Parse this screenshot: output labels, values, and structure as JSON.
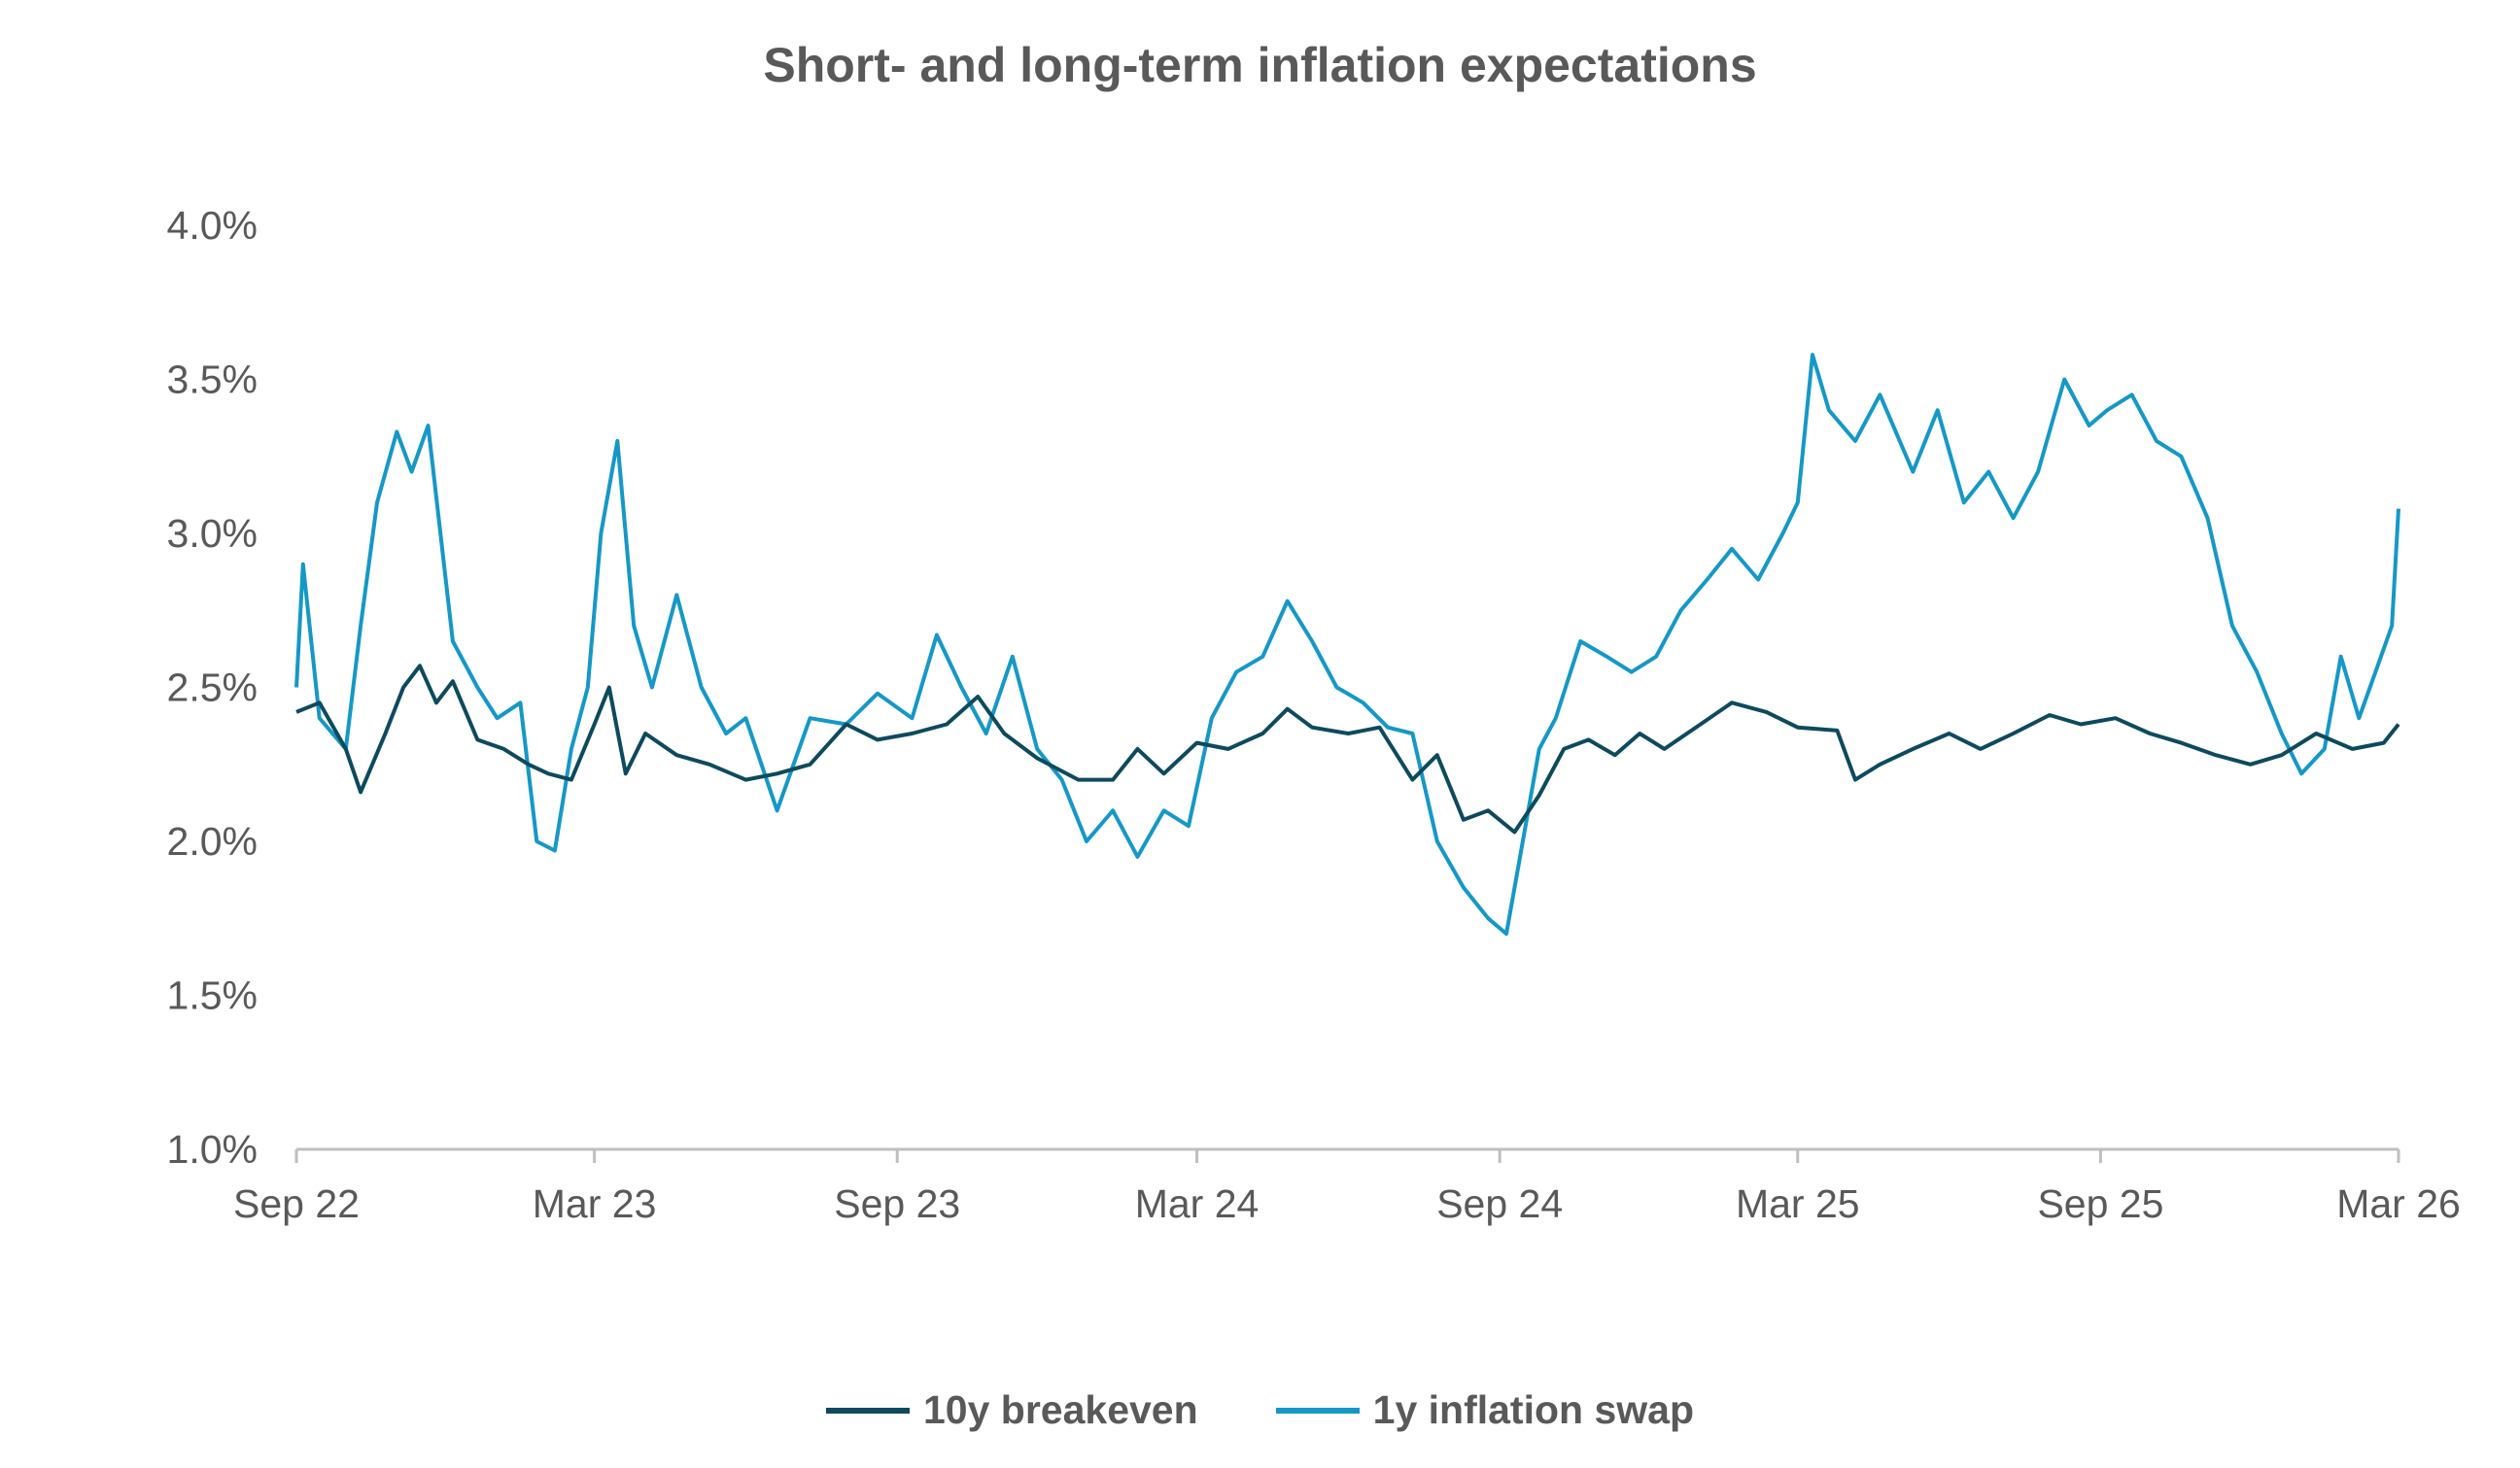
{
  "chart_data": {
    "type": "line",
    "title": "Short- and long-term inflation expectations",
    "xlabel": "",
    "ylabel": "",
    "x_ticks": [
      "Sep 22",
      "Mar 23",
      "Sep 23",
      "Mar 24",
      "Sep 24",
      "Mar 25",
      "Sep 25",
      "Mar 26"
    ],
    "y_ticks": [
      "1.0%",
      "1.5%",
      "2.0%",
      "2.5%",
      "3.0%",
      "3.5%",
      "4.0%"
    ],
    "ylim": [
      1.0,
      4.0
    ],
    "grid": false,
    "legend_position": "bottom",
    "series": [
      {
        "name": "10y breakeven",
        "color": "#0d4a5e",
        "points": [
          [
            "2022-09-01",
            2.42
          ],
          [
            "2022-09-15",
            2.45
          ],
          [
            "2022-10-01",
            2.3
          ],
          [
            "2022-10-10",
            2.16
          ],
          [
            "2022-10-25",
            2.35
          ],
          [
            "2022-11-05",
            2.5
          ],
          [
            "2022-11-15",
            2.57
          ],
          [
            "2022-11-25",
            2.45
          ],
          [
            "2022-12-05",
            2.52
          ],
          [
            "2022-12-20",
            2.33
          ],
          [
            "2023-01-05",
            2.3
          ],
          [
            "2023-01-20",
            2.25
          ],
          [
            "2023-02-01",
            2.22
          ],
          [
            "2023-02-15",
            2.2
          ],
          [
            "2023-03-01",
            2.38
          ],
          [
            "2023-03-10",
            2.5
          ],
          [
            "2023-03-20",
            2.22
          ],
          [
            "2023-04-01",
            2.35
          ],
          [
            "2023-04-20",
            2.28
          ],
          [
            "2023-05-10",
            2.25
          ],
          [
            "2023-06-01",
            2.2
          ],
          [
            "2023-06-20",
            2.22
          ],
          [
            "2023-07-10",
            2.25
          ],
          [
            "2023-08-01",
            2.38
          ],
          [
            "2023-08-20",
            2.33
          ],
          [
            "2023-09-10",
            2.35
          ],
          [
            "2023-10-01",
            2.38
          ],
          [
            "2023-10-20",
            2.47
          ],
          [
            "2023-11-05",
            2.35
          ],
          [
            "2023-11-25",
            2.27
          ],
          [
            "2023-12-20",
            2.2
          ],
          [
            "2024-01-10",
            2.2
          ],
          [
            "2024-01-25",
            2.3
          ],
          [
            "2024-02-10",
            2.22
          ],
          [
            "2024-03-01",
            2.32
          ],
          [
            "2024-03-20",
            2.3
          ],
          [
            "2024-04-10",
            2.35
          ],
          [
            "2024-04-25",
            2.43
          ],
          [
            "2024-05-10",
            2.37
          ],
          [
            "2024-06-01",
            2.35
          ],
          [
            "2024-06-20",
            2.37
          ],
          [
            "2024-07-10",
            2.2
          ],
          [
            "2024-07-25",
            2.28
          ],
          [
            "2024-08-10",
            2.07
          ],
          [
            "2024-08-25",
            2.1
          ],
          [
            "2024-09-10",
            2.03
          ],
          [
            "2024-09-25",
            2.15
          ],
          [
            "2024-10-10",
            2.3
          ],
          [
            "2024-10-25",
            2.33
          ],
          [
            "2024-11-10",
            2.28
          ],
          [
            "2024-11-25",
            2.35
          ],
          [
            "2024-12-10",
            2.3
          ],
          [
            "2025-01-01",
            2.38
          ],
          [
            "2025-01-20",
            2.45
          ],
          [
            "2025-02-10",
            2.42
          ],
          [
            "2025-03-01",
            2.37
          ],
          [
            "2025-03-25",
            2.36
          ],
          [
            "2025-04-05",
            2.2
          ],
          [
            "2025-04-20",
            2.25
          ],
          [
            "2025-05-10",
            2.3
          ],
          [
            "2025-06-01",
            2.35
          ],
          [
            "2025-06-20",
            2.3
          ],
          [
            "2025-07-10",
            2.35
          ],
          [
            "2025-08-01",
            2.41
          ],
          [
            "2025-08-20",
            2.38
          ],
          [
            "2025-09-10",
            2.4
          ],
          [
            "2025-10-01",
            2.35
          ],
          [
            "2025-10-20",
            2.32
          ],
          [
            "2025-11-10",
            2.28
          ],
          [
            "2025-12-01",
            2.25
          ],
          [
            "2025-12-20",
            2.28
          ],
          [
            "2026-01-10",
            2.35
          ],
          [
            "2026-02-01",
            2.3
          ],
          [
            "2026-02-20",
            2.32
          ],
          [
            "2026-03-01",
            2.38
          ]
        ]
      },
      {
        "name": "1y inflation swap",
        "color": "#1598c7",
        "points": [
          [
            "2022-09-01",
            2.5
          ],
          [
            "2022-09-05",
            2.9
          ],
          [
            "2022-09-15",
            2.4
          ],
          [
            "2022-10-01",
            2.3
          ],
          [
            "2022-10-10",
            2.7
          ],
          [
            "2022-10-20",
            3.1
          ],
          [
            "2022-11-01",
            3.33
          ],
          [
            "2022-11-10",
            3.2
          ],
          [
            "2022-11-20",
            3.35
          ],
          [
            "2022-12-05",
            2.65
          ],
          [
            "2022-12-20",
            2.5
          ],
          [
            "2023-01-01",
            2.4
          ],
          [
            "2023-01-15",
            2.45
          ],
          [
            "2023-01-25",
            2.0
          ],
          [
            "2023-02-05",
            1.97
          ],
          [
            "2023-02-15",
            2.3
          ],
          [
            "2023-02-25",
            2.5
          ],
          [
            "2023-03-05",
            3.0
          ],
          [
            "2023-03-15",
            3.3
          ],
          [
            "2023-03-25",
            2.7
          ],
          [
            "2023-04-05",
            2.5
          ],
          [
            "2023-04-20",
            2.8
          ],
          [
            "2023-05-05",
            2.5
          ],
          [
            "2023-05-20",
            2.35
          ],
          [
            "2023-06-01",
            2.4
          ],
          [
            "2023-06-20",
            2.1
          ],
          [
            "2023-07-10",
            2.4
          ],
          [
            "2023-08-01",
            2.38
          ],
          [
            "2023-08-20",
            2.48
          ],
          [
            "2023-09-10",
            2.4
          ],
          [
            "2023-09-25",
            2.67
          ],
          [
            "2023-10-10",
            2.5
          ],
          [
            "2023-10-25",
            2.35
          ],
          [
            "2023-11-10",
            2.6
          ],
          [
            "2023-11-25",
            2.3
          ],
          [
            "2023-12-10",
            2.2
          ],
          [
            "2023-12-25",
            2.0
          ],
          [
            "2024-01-10",
            2.1
          ],
          [
            "2024-01-25",
            1.95
          ],
          [
            "2024-02-10",
            2.1
          ],
          [
            "2024-02-25",
            2.05
          ],
          [
            "2024-03-10",
            2.4
          ],
          [
            "2024-03-25",
            2.55
          ],
          [
            "2024-04-10",
            2.6
          ],
          [
            "2024-04-25",
            2.78
          ],
          [
            "2024-05-10",
            2.65
          ],
          [
            "2024-05-25",
            2.5
          ],
          [
            "2024-06-10",
            2.45
          ],
          [
            "2024-06-25",
            2.37
          ],
          [
            "2024-07-10",
            2.35
          ],
          [
            "2024-07-25",
            2.0
          ],
          [
            "2024-08-10",
            1.85
          ],
          [
            "2024-08-25",
            1.75
          ],
          [
            "2024-09-05",
            1.7
          ],
          [
            "2024-09-15",
            2.0
          ],
          [
            "2024-09-25",
            2.3
          ],
          [
            "2024-10-05",
            2.4
          ],
          [
            "2024-10-20",
            2.65
          ],
          [
            "2024-11-05",
            2.6
          ],
          [
            "2024-11-20",
            2.55
          ],
          [
            "2024-12-05",
            2.6
          ],
          [
            "2024-12-20",
            2.75
          ],
          [
            "2025-01-05",
            2.85
          ],
          [
            "2025-01-20",
            2.95
          ],
          [
            "2025-02-05",
            2.85
          ],
          [
            "2025-02-20",
            3.0
          ],
          [
            "2025-03-01",
            3.1
          ],
          [
            "2025-03-10",
            3.58
          ],
          [
            "2025-03-20",
            3.4
          ],
          [
            "2025-04-05",
            3.3
          ],
          [
            "2025-04-20",
            3.45
          ],
          [
            "2025-05-10",
            3.2
          ],
          [
            "2025-05-25",
            3.4
          ],
          [
            "2025-06-10",
            3.1
          ],
          [
            "2025-06-25",
            3.2
          ],
          [
            "2025-07-10",
            3.05
          ],
          [
            "2025-07-25",
            3.2
          ],
          [
            "2025-08-10",
            3.5
          ],
          [
            "2025-08-25",
            3.35
          ],
          [
            "2025-09-05",
            3.4
          ],
          [
            "2025-09-20",
            3.45
          ],
          [
            "2025-10-05",
            3.3
          ],
          [
            "2025-10-20",
            3.25
          ],
          [
            "2025-11-05",
            3.05
          ],
          [
            "2025-11-20",
            2.7
          ],
          [
            "2025-12-05",
            2.55
          ],
          [
            "2025-12-20",
            2.35
          ],
          [
            "2026-01-01",
            2.22
          ],
          [
            "2026-01-15",
            2.3
          ],
          [
            "2026-01-25",
            2.6
          ],
          [
            "2026-02-05",
            2.4
          ],
          [
            "2026-02-15",
            2.55
          ],
          [
            "2026-02-25",
            2.7
          ],
          [
            "2026-03-01",
            3.08
          ]
        ]
      }
    ]
  }
}
